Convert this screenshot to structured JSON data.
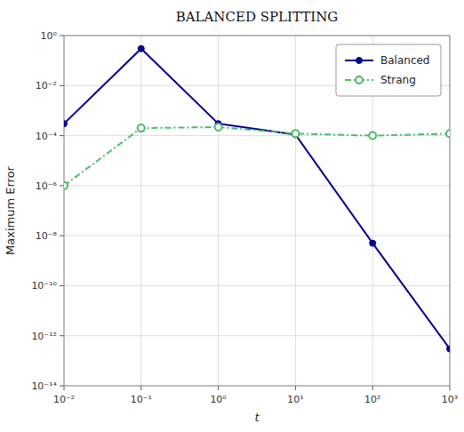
{
  "chart_data": {
    "type": "line",
    "title": "BALANCED SPLITTING",
    "x_label": "t",
    "y_label": "Maximum Error",
    "log": true,
    "grid": true,
    "legend": "upper right",
    "xlim": [
      0.01,
      1000.0
    ],
    "ylim": [
      1e-14,
      1.0
    ],
    "xticks": [
      {
        "value": 0.01,
        "label": "10⁻²"
      },
      {
        "value": 0.1,
        "label": "10⁻¹"
      },
      {
        "value": 1,
        "label": "10⁰"
      },
      {
        "value": 10,
        "label": "10¹"
      },
      {
        "value": 100,
        "label": "10²"
      },
      {
        "value": 1000,
        "label": "10³"
      }
    ],
    "yticks": [
      {
        "value": 1e-14,
        "label": "10⁻¹⁴"
      },
      {
        "value": 1e-12,
        "label": "10⁻¹²"
      },
      {
        "value": 1e-10,
        "label": "10⁻¹⁰"
      },
      {
        "value": 1e-08,
        "label": "10⁻⁸"
      },
      {
        "value": 1e-06,
        "label": "10⁻⁶"
      },
      {
        "value": 0.0001,
        "label": "10⁻⁴"
      },
      {
        "value": 0.01,
        "label": "10⁻²"
      },
      {
        "value": 1,
        "label": "10⁰"
      }
    ],
    "x": [
      0.01,
      0.1,
      1.0,
      10.0,
      100.0,
      1000.0
    ],
    "series": [
      {
        "name": "Balanced",
        "color": "#00008B",
        "marker": "circle",
        "line_style": "solid",
        "values": [
          0.0003,
          0.3,
          0.0003,
          0.00011,
          5e-09,
          3e-13
        ]
      },
      {
        "name": "Strang",
        "color": "#4dbb6d",
        "marker": "open-circle",
        "line_style": "dashdot",
        "values": [
          1e-06,
          0.0002,
          0.00022,
          0.00012,
          0.0001,
          0.00012
        ]
      }
    ]
  }
}
